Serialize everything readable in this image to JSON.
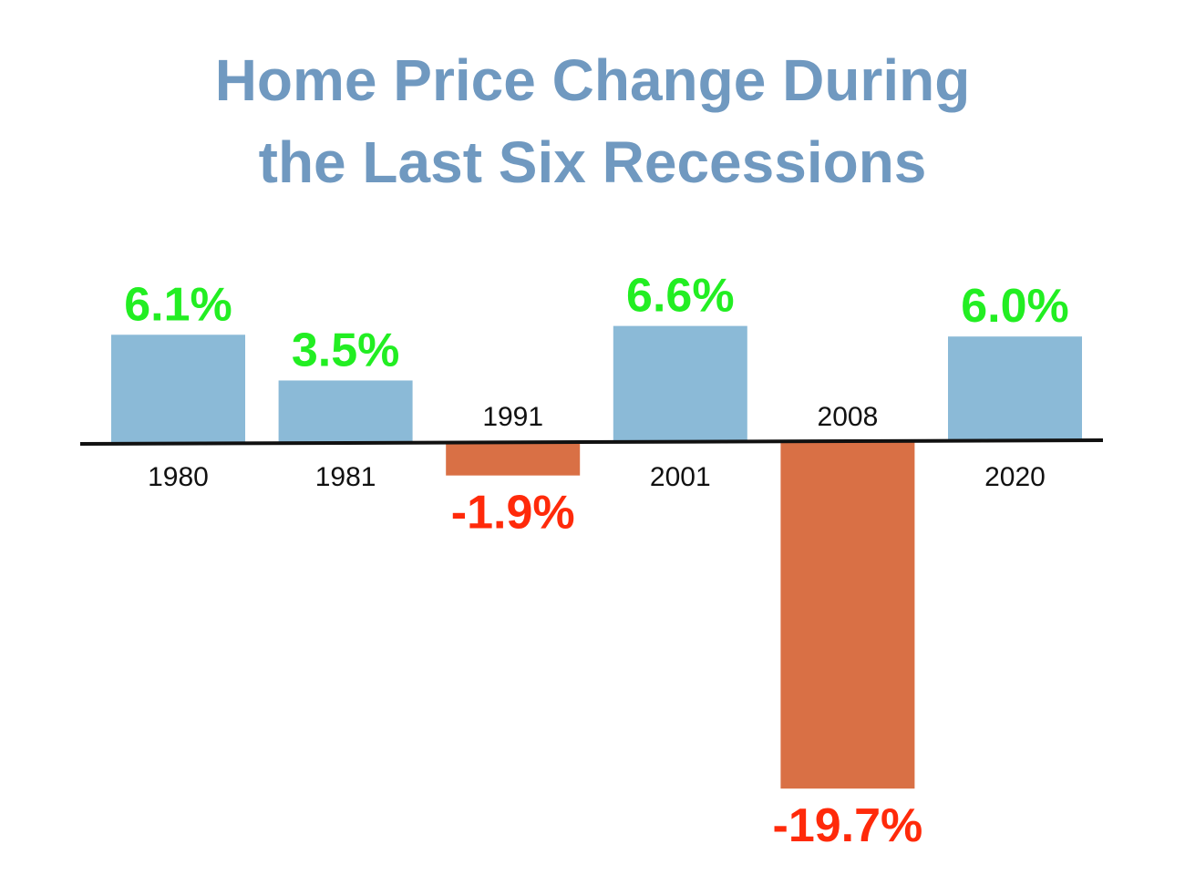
{
  "title_lines": [
    "Home Price Change During",
    "the Last Six Recessions"
  ],
  "chart_data": {
    "type": "bar",
    "title": "Home Price Change During the Last Six Recessions",
    "categories": [
      "1980",
      "1981",
      "1991",
      "2001",
      "2008",
      "2020"
    ],
    "values": [
      6.1,
      3.5,
      -1.9,
      6.6,
      -19.7,
      6.0
    ],
    "value_labels": [
      "6.1%",
      "3.5%",
      "-1.9%",
      "6.6%",
      "-19.7%",
      "6.0%"
    ],
    "xlabel": "",
    "ylabel": "",
    "grid": false,
    "legend": "none",
    "colors": {
      "positive_bar": "#8bbad7",
      "negative_bar": "#d97045",
      "positive_label": "#22ee22",
      "negative_label": "#ff2a0a",
      "title": "#7099c0",
      "axis": "#111111"
    }
  }
}
